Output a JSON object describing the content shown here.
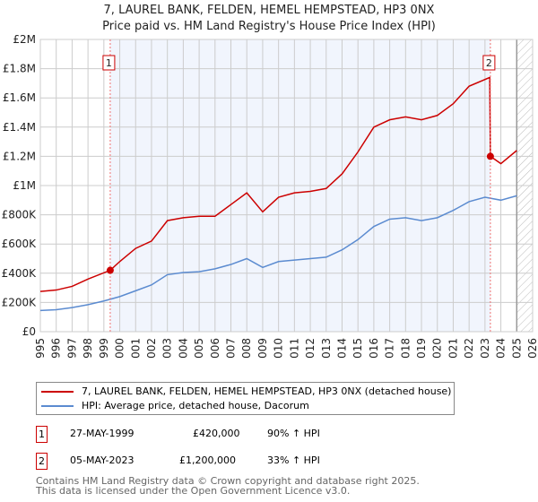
{
  "chart_data": {
    "type": "line",
    "title": "7, LAUREL BANK, FELDEN, HEMEL HEMPSTEAD, HP3 0NX",
    "subtitle": "Price paid vs. HM Land Registry's House Price Index (HPI)",
    "xlabel": "",
    "ylabel": "",
    "xlim": [
      1995,
      2026
    ],
    "ylim": [
      0,
      2000000
    ],
    "y_ticks": [
      0,
      200000,
      400000,
      600000,
      800000,
      1000000,
      1200000,
      1400000,
      1600000,
      1800000,
      2000000
    ],
    "y_tick_labels": [
      "£0",
      "£200K",
      "£400K",
      "£600K",
      "£800K",
      "£1M",
      "£1.2M",
      "£1.4M",
      "£1.6M",
      "£1.8M",
      "£2M"
    ],
    "x_ticks": [
      1995,
      1996,
      1997,
      1998,
      1999,
      2000,
      2001,
      2002,
      2003,
      2004,
      2005,
      2006,
      2007,
      2008,
      2009,
      2010,
      2011,
      2012,
      2013,
      2014,
      2015,
      2016,
      2017,
      2018,
      2019,
      2020,
      2021,
      2022,
      2023,
      2024,
      2025,
      2026
    ],
    "grid": true,
    "series": [
      {
        "name": "7, LAUREL BANK, FELDEN, HEMEL HEMPSTEAD, HP3 0NX (detached house)",
        "color": "#cc0000",
        "x": [
          1995,
          1996,
          1997,
          1998,
          1999.4,
          2000,
          2001,
          2002,
          2003,
          2004,
          2005,
          2006,
          2007,
          2008,
          2009,
          2010,
          2011,
          2012,
          2013,
          2014,
          2015,
          2016,
          2017,
          2018,
          2019,
          2020,
          2021,
          2022,
          2023.3,
          2023.34,
          2024,
          2025
        ],
        "y": [
          275000,
          285000,
          310000,
          360000,
          420000,
          480000,
          570000,
          620000,
          760000,
          780000,
          790000,
          790000,
          870000,
          950000,
          820000,
          920000,
          950000,
          960000,
          980000,
          1080000,
          1230000,
          1400000,
          1450000,
          1470000,
          1450000,
          1480000,
          1560000,
          1680000,
          1740000,
          1200000,
          1150000,
          1240000
        ]
      },
      {
        "name": "HPI: Average price, detached house, Dacorum",
        "color": "#5b8bd0",
        "x": [
          1995,
          1996,
          1997,
          1998,
          1999,
          2000,
          2001,
          2002,
          2003,
          2004,
          2005,
          2006,
          2007,
          2008,
          2009,
          2010,
          2011,
          2012,
          2013,
          2014,
          2015,
          2016,
          2017,
          2018,
          2019,
          2020,
          2021,
          2022,
          2023,
          2024,
          2025
        ],
        "y": [
          145000,
          150000,
          165000,
          185000,
          210000,
          240000,
          280000,
          320000,
          390000,
          405000,
          410000,
          430000,
          460000,
          500000,
          440000,
          480000,
          490000,
          500000,
          510000,
          560000,
          630000,
          720000,
          770000,
          780000,
          760000,
          780000,
          830000,
          890000,
          920000,
          900000,
          930000
        ]
      }
    ],
    "sales": [
      {
        "label": "1",
        "x": 1999.4,
        "y": 420000,
        "date": "27-MAY-1999",
        "price": "£420,000",
        "hpi": "90% ↑ HPI"
      },
      {
        "label": "2",
        "x": 2023.34,
        "y": 1200000,
        "date": "05-MAY-2023",
        "price": "£1,200,000",
        "hpi": "33% ↑ HPI"
      }
    ],
    "shaded_range": [
      1999.4,
      2023.34
    ],
    "hatched_from": 2025,
    "legend": "below"
  },
  "footer": [
    "Contains HM Land Registry data © Crown copyright and database right 2025.",
    "This data is licensed under the Open Government Licence v3.0."
  ]
}
